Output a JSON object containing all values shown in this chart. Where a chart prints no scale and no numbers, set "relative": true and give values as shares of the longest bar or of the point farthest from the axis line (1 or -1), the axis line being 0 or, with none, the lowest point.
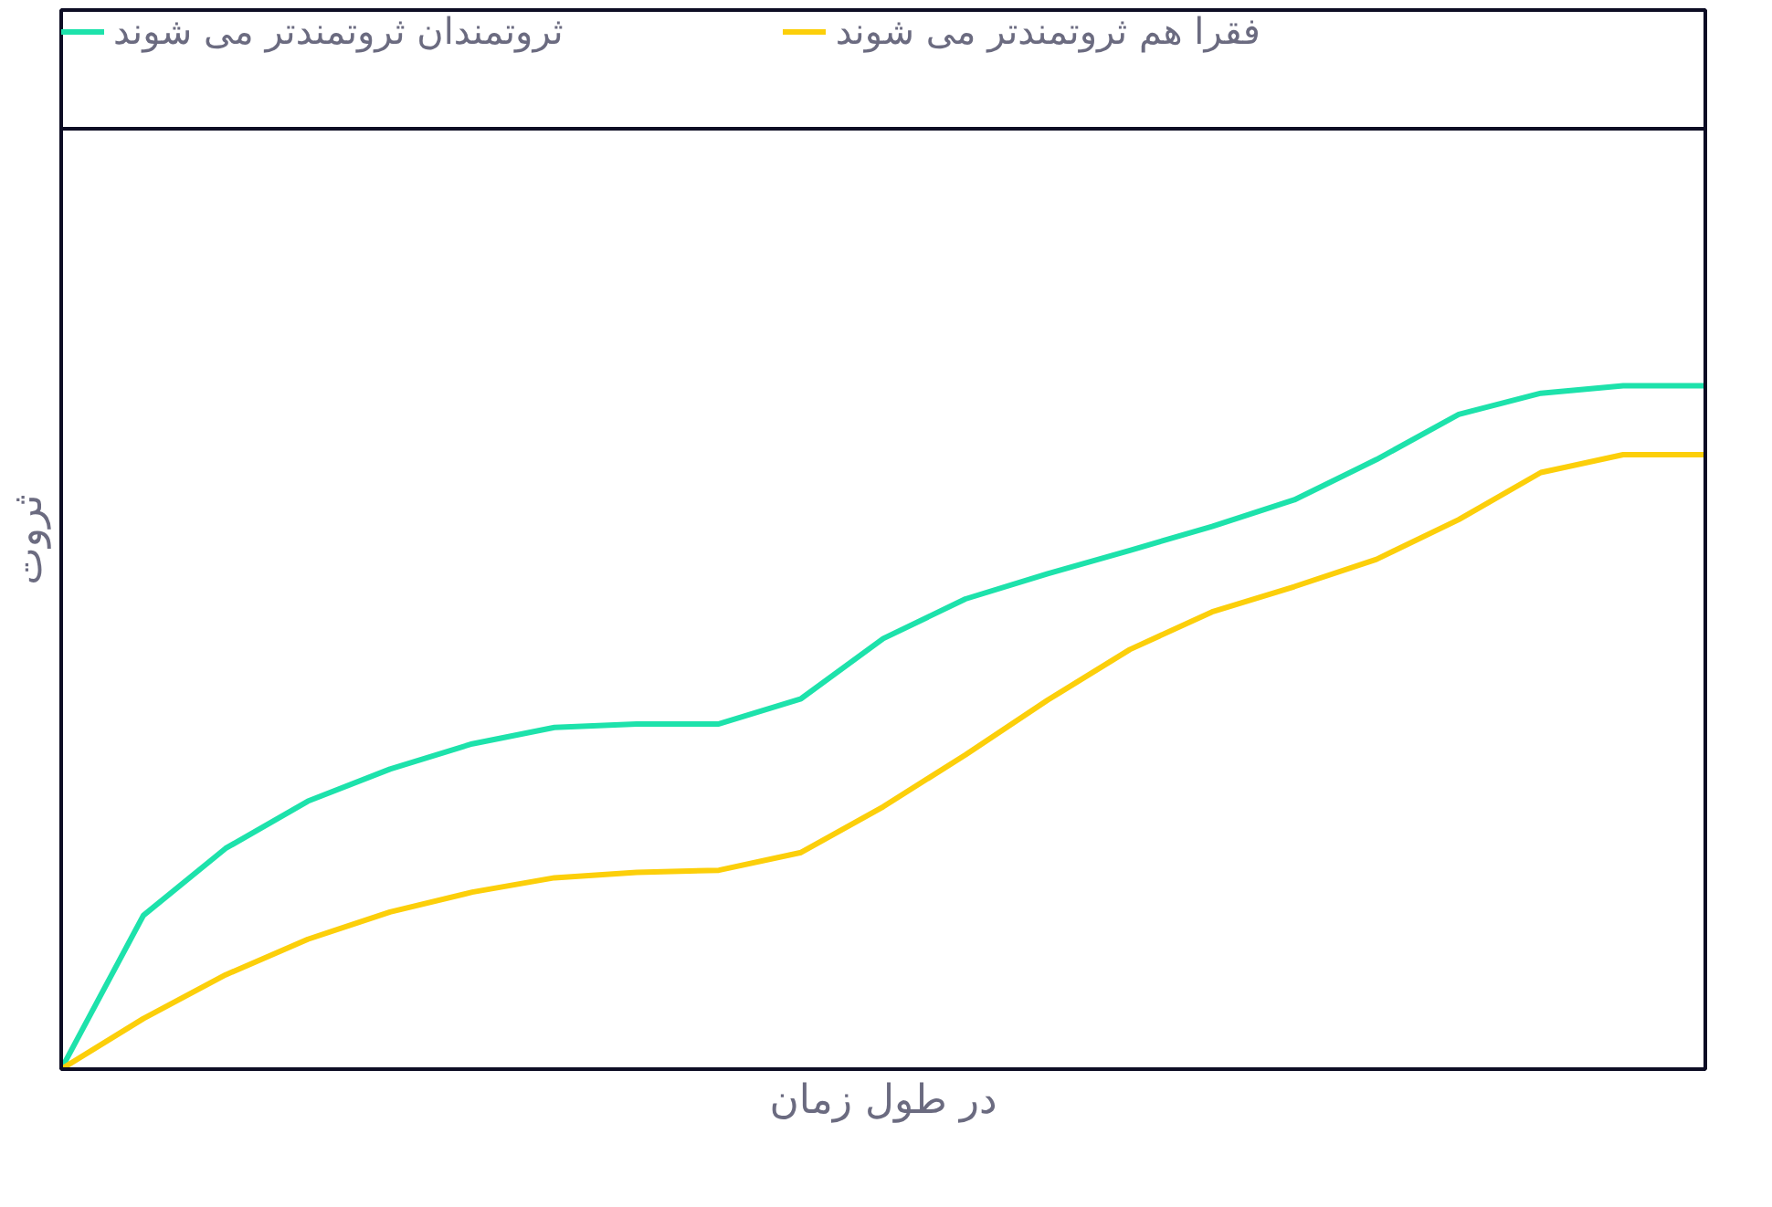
{
  "chart_data": {
    "type": "line",
    "relative": true,
    "xlabel": "در طول زمان",
    "ylabel": "ثروت",
    "categories": [
      null,
      null,
      null,
      null,
      null,
      null,
      null,
      null,
      null,
      null,
      null,
      null,
      null,
      null,
      null,
      null,
      null,
      null,
      null,
      null,
      null
    ],
    "series": [
      {
        "name": "ثروتمندان ثروتمندتر می شوند",
        "color": "#1de2ab",
        "values": [
          0,
          0.225,
          0.323,
          0.392,
          0.439,
          0.476,
          0.5,
          0.505,
          0.505,
          0.542,
          0.63,
          0.688,
          0.725,
          0.759,
          0.794,
          0.833,
          0.892,
          0.958,
          0.989,
          1,
          1
        ]
      },
      {
        "name": "فقرا هم ثروتمندتر می شوند",
        "color": "#fccf0a",
        "values": [
          0,
          0.074,
          0.138,
          0.19,
          0.23,
          0.259,
          0.28,
          0.288,
          0.291,
          0.317,
          0.384,
          0.46,
          0.54,
          0.614,
          0.669,
          0.706,
          0.746,
          0.804,
          0.873,
          0.899,
          0.899
        ]
      }
    ],
    "legend": "top",
    "grid": false,
    "line_style": "solid",
    "marker": "none"
  }
}
